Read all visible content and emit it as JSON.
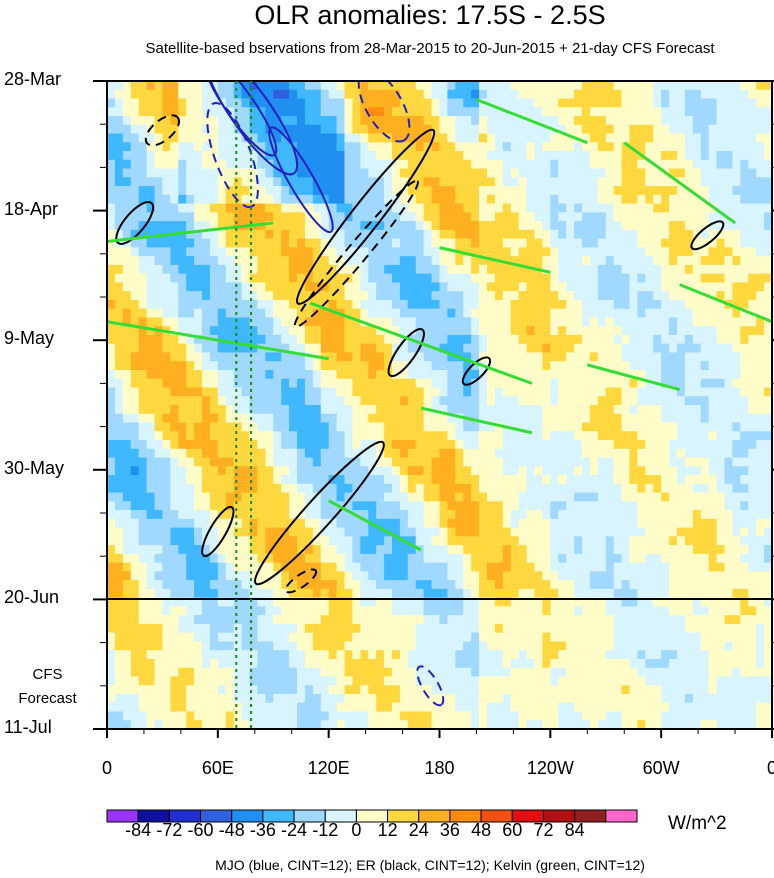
{
  "title": "OLR anomalies: 17.5S - 2.5S",
  "subtitle": "Satellite-based bservations from 28-Mar-2015 to 20-Jun-2015 + 21-day CFS Forecast",
  "cfs_label_line1": "CFS",
  "cfs_label_line2": "Forecast",
  "units": "W/m^2",
  "caption": "MJO (blue, CINT=12); ER (black, CINT=12); Kelvin (green, CINT=12)",
  "chart_data": {
    "type": "heatmap",
    "title": "OLR anomalies: 17.5S - 2.5S",
    "subtitle": "Satellite-based bservations from 28-Mar-2015 to 20-Jun-2015 + 21-day CFS Forecast",
    "x_ticks": [
      "0",
      "60E",
      "120E",
      "180",
      "120W",
      "60W",
      "0"
    ],
    "x_tick_lon": [
      0,
      60,
      120,
      180,
      240,
      300,
      360
    ],
    "y_ticks": [
      "28-Mar",
      "18-Apr",
      "9-May",
      "30-May",
      "20-Jun",
      "11-Jul"
    ],
    "y_tick_day": [
      0,
      21,
      42,
      63,
      84,
      105
    ],
    "observation_end": "20-Jun",
    "forecast_end": "11-Jul",
    "colorbar_levels": [
      "-84",
      "-72",
      "-60",
      "-48",
      "-36",
      "-24",
      "-12",
      "0",
      "12",
      "24",
      "36",
      "48",
      "60",
      "72",
      "84"
    ],
    "colorbar_colors": [
      "#9933ff",
      "#1010a0",
      "#2030d0",
      "#3060e0",
      "#2090f0",
      "#40b8ff",
      "#a0d8ff",
      "#d8f4ff",
      "#fffcc8",
      "#ffd840",
      "#ffb020",
      "#ff8c10",
      "#f05010",
      "#e01010",
      "#b01010",
      "#902020",
      "#ff66cc"
    ],
    "units": "W/m^2",
    "contours": "MJO (blue, CINT=12); ER (black, CINT=12); Kelvin (green, CINT=12)",
    "reference_lines_lon": [
      70,
      78
    ]
  }
}
